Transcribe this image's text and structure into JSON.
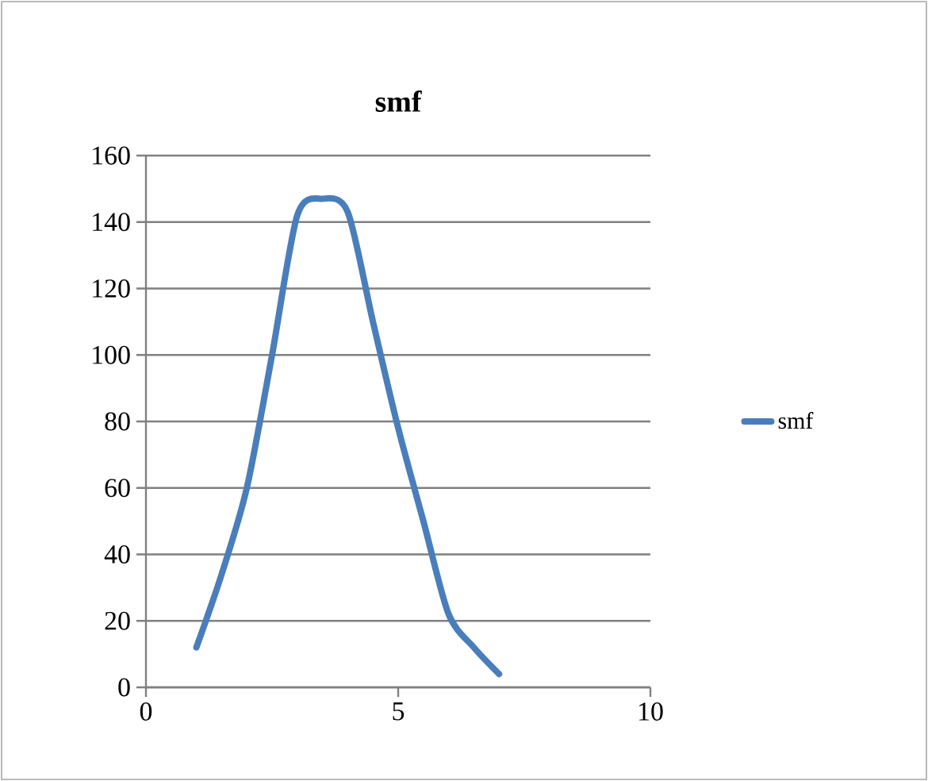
{
  "chart_data": {
    "type": "line",
    "title": "smf",
    "xlim": [
      0,
      10
    ],
    "xticks": [
      0,
      5,
      10
    ],
    "ylim": [
      0,
      160
    ],
    "yticks": [
      0,
      20,
      40,
      60,
      80,
      100,
      120,
      140,
      160
    ],
    "grid": "y",
    "legend": "right",
    "series": [
      {
        "name": "smf",
        "color": "#4a7ebb",
        "x": [
          1,
          1.5,
          2,
          2.5,
          3,
          3.5,
          4,
          4.5,
          5,
          5.5,
          6,
          6.5,
          7
        ],
        "values": [
          12,
          34,
          60,
          100,
          142,
          147,
          143,
          110,
          78,
          50,
          22,
          12,
          4
        ]
      }
    ]
  }
}
